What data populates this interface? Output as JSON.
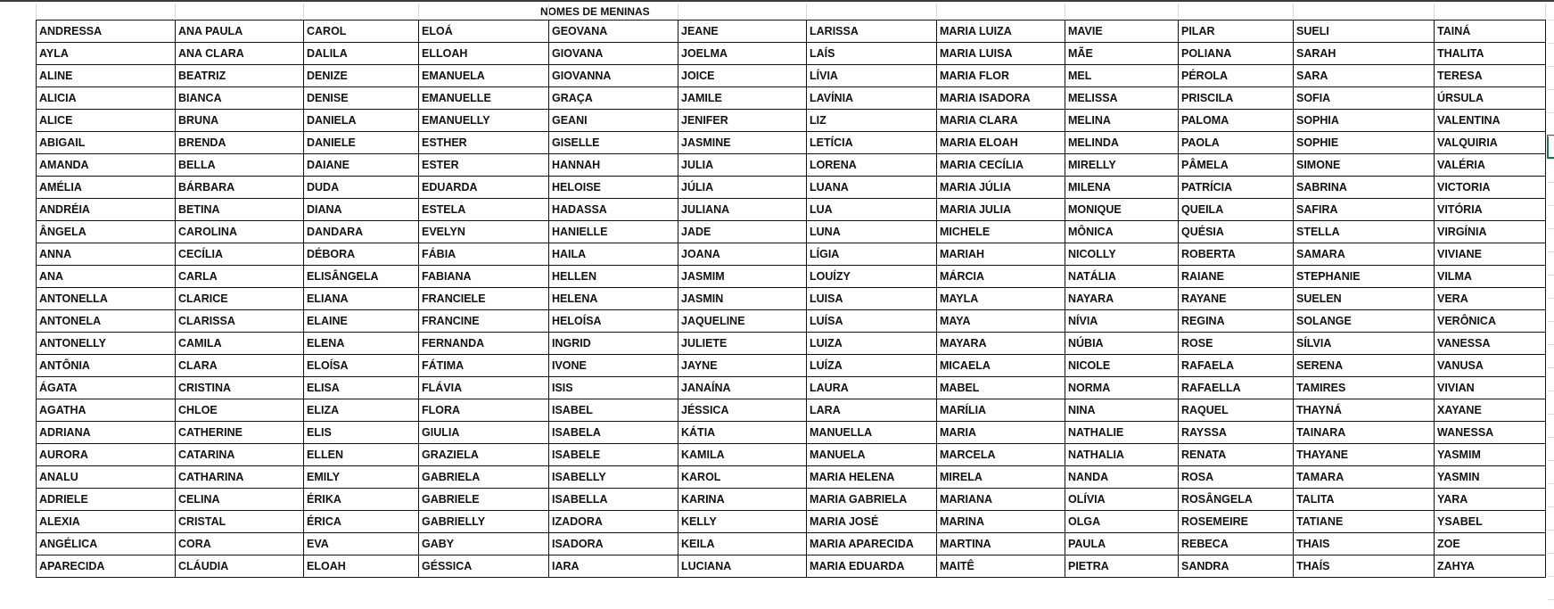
{
  "sheet": {
    "title": "NOMES DE MENINAS",
    "accent_color": "#217346",
    "rows": [
      [
        "ANDRESSA",
        "ANA PAULA",
        "CAROL",
        "ELOÁ",
        "GEOVANA",
        "JEANE",
        "LARISSA",
        "MARIA LUIZA",
        "MAVIE",
        "PILAR",
        "SUELI",
        "TAINÁ"
      ],
      [
        "AYLA",
        "ANA CLARA",
        "DALILA",
        "ELLOAH",
        "GIOVANA",
        "JOELMA",
        "LAÍS",
        "MARIA LUISA",
        "MÃE",
        "POLIANA",
        "SARAH",
        "THALITA"
      ],
      [
        "ALINE",
        "BEATRIZ",
        "DENIZE",
        "EMANUELA",
        "GIOVANNA",
        "JOICE",
        "LÍVIA",
        "MARIA FLOR",
        "MEL",
        "PÉROLA",
        "SARA",
        "TERESA"
      ],
      [
        "ALICIA",
        "BIANCA",
        "DENISE",
        "EMANUELLE",
        "GRAÇA",
        "JAMILE",
        "LAVÍNIA",
        "MARIA ISADORA",
        "MELISSA",
        "PRISCILA",
        "SOFIA",
        "ÚRSULA"
      ],
      [
        "ALICE",
        "BRUNA",
        "DANIELA",
        "EMANUELLY",
        "GEANI",
        "JENIFER",
        "LIZ",
        "MARIA CLARA",
        "MELINA",
        "PALOMA",
        "SOPHIA",
        "VALENTINA"
      ],
      [
        "ABIGAIL",
        "BRENDA",
        "DANIELE",
        "ESTHER",
        "GISELLE",
        "JASMINE",
        "LETÍCIA",
        "MARIA ELOAH",
        "MELINDA",
        "PAOLA",
        "SOPHIE",
        "VALQUIRIA"
      ],
      [
        "AMANDA",
        "BELLA",
        "DAIANE",
        "ESTER",
        "HANNAH",
        "JULIA",
        "LORENA",
        "MARIA CECÍLIA",
        "MIRELLY",
        "PÂMELA",
        "SIMONE",
        "VALÉRIA"
      ],
      [
        "AMÉLIA",
        "BÁRBARA",
        "DUDA",
        "EDUARDA",
        "HELOISE",
        "JÚLIA",
        "LUANA",
        "MARIA JÚLIA",
        "MILENA",
        "PATRÍCIA",
        "SABRINA",
        "VICTORIA"
      ],
      [
        "ANDRÉIA",
        "BETINA",
        "DIANA",
        "ESTELA",
        "HADASSA",
        "JULIANA",
        "LUA",
        "MARIA JULIA",
        "MONIQUE",
        "QUEILA",
        "SAFIRA",
        "VITÓRIA"
      ],
      [
        "ÂNGELA",
        "CAROLINA",
        "DANDARA",
        "EVELYN",
        "HANIELLE",
        "JADE",
        "LUNA",
        "MICHELE",
        "MÔNICA",
        "QUÉSIA",
        "STELLA",
        "VIRGÍNIA"
      ],
      [
        "ANNA",
        "CECÍLIA",
        "DÉBORA",
        "FÁBIA",
        "HAILA",
        "JOANA",
        "LÍGIA",
        "MARIAH",
        "NICOLLY",
        "ROBERTA",
        "SAMARA",
        "VIVIANE"
      ],
      [
        "ANA",
        "CARLA",
        "ELISÂNGELA",
        "FABIANA",
        "HELLEN",
        "JASMIM",
        "LOUÍZY",
        "MÁRCIA",
        "NATÁLIA",
        "RAIANE",
        "STEPHANIE",
        "VILMA"
      ],
      [
        "ANTONELLA",
        "CLARICE",
        "ELIANA",
        "FRANCIELE",
        "HELENA",
        "JASMIN",
        "LUISA",
        "MAYLA",
        "NAYARA",
        "RAYANE",
        "SUELEN",
        "VERA"
      ],
      [
        "ANTONELA",
        "CLARISSA",
        "ELAINE",
        "FRANCINE",
        "HELOÍSA",
        "JAQUELINE",
        "LUÍSA",
        "MAYA",
        "NÍVIA",
        "REGINA",
        "SOLANGE",
        "VERÔNICA"
      ],
      [
        "ANTONELLY",
        "CAMILA",
        "ELENA",
        "FERNANDA",
        "INGRID",
        "JULIETE",
        "LUIZA",
        "MAYARA",
        "NÚBIA",
        "ROSE",
        "SÍLVIA",
        "VANESSA"
      ],
      [
        "ANTÔNIA",
        "CLARA",
        "ELOÍSA",
        "FÁTIMA",
        "IVONE",
        "JAYNE",
        "LUÍZA",
        "MICAELA",
        "NICOLE",
        "RAFAELA",
        "SERENA",
        "VANUSA"
      ],
      [
        "ÁGATA",
        "CRISTINA",
        "ELISA",
        "FLÁVIA",
        "ISIS",
        "JANAÍNA",
        "LAURA",
        "MABEL",
        "NORMA",
        "RAFAELLA",
        "TAMIRES",
        "VIVIAN"
      ],
      [
        "AGATHA",
        "CHLOE",
        "ELIZA",
        "FLORA",
        "ISABEL",
        "JÉSSICA",
        "LARA",
        "MARÍLIA",
        "NINA",
        "RAQUEL",
        "THAYNÁ",
        "XAYANE"
      ],
      [
        "ADRIANA",
        "CATHERINE",
        "ELIS",
        "GIULIA",
        "ISABELA",
        "KÁTIA",
        "MANUELLA",
        "MARIA",
        "NATHALIE",
        "RAYSSA",
        "TAINARA",
        "WANESSA"
      ],
      [
        "AURORA",
        "CATARINA",
        "ELLEN",
        "GRAZIELA",
        "ISABELE",
        "KAMILA",
        "MANUELA",
        "MARCELA",
        "NATHALIA",
        "RENATA",
        "THAYANE",
        "YASMIM"
      ],
      [
        "ANALU",
        "CATHARINA",
        "EMILY",
        "GABRIELA",
        "ISABELLY",
        "KAROL",
        "MARIA HELENA",
        "MIRELA",
        "NANDA",
        "ROSA",
        "TAMARA",
        "YASMIN"
      ],
      [
        "ADRIELE",
        "CELINA",
        "ÉRIKA",
        "GABRIELE",
        "ISABELLA",
        "KARINA",
        "MARIA GABRIELA",
        "MARIANA",
        "OLÍVIA",
        "ROSÂNGELA",
        "TALITA",
        "YARA"
      ],
      [
        "ALEXIA",
        "CRISTAL",
        "ÉRICA",
        "GABRIELLY",
        "IZADORA",
        "KELLY",
        "MARIA JOSÉ",
        "MARINA",
        "OLGA",
        "ROSEMEIRE",
        "TATIANE",
        "YSABEL"
      ],
      [
        "ANGÉLICA",
        "CORA",
        "EVA",
        "GABY",
        "ISADORA",
        "KEILA",
        "MARIA APARECIDA",
        "MARTINA",
        "PAULA",
        "REBECA",
        "THAIS",
        "ZOE"
      ],
      [
        "APARECIDA",
        "CLÁUDIA",
        "ELOAH",
        "GÉSSICA",
        "IARA",
        "LUCIANA",
        "MARIA EDUARDA",
        "MAITÊ",
        "PIETRA",
        "SANDRA",
        "THAÍS",
        "ZAHYA"
      ]
    ]
  }
}
